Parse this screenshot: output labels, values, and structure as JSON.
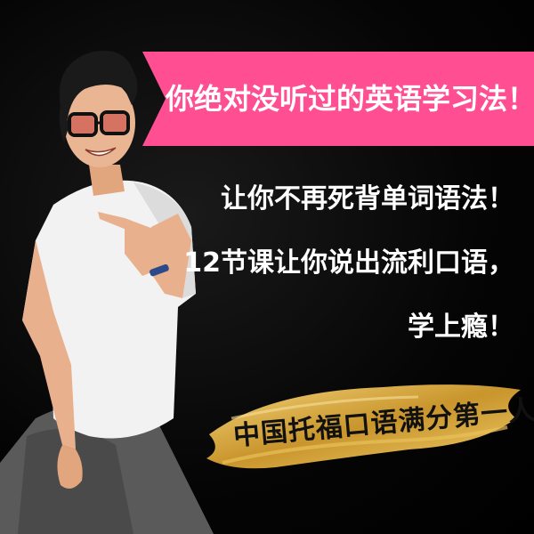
{
  "banner": {
    "headline": "你绝对没听过的英语学习法！",
    "color": "#ff4f92"
  },
  "taglines": [
    "让你不再死背单词语法！",
    "12节课让你说出流利口语，",
    "学上瘾！"
  ],
  "badge": {
    "text": "中国托福口语满分第一人",
    "color": "#d9a93c"
  }
}
